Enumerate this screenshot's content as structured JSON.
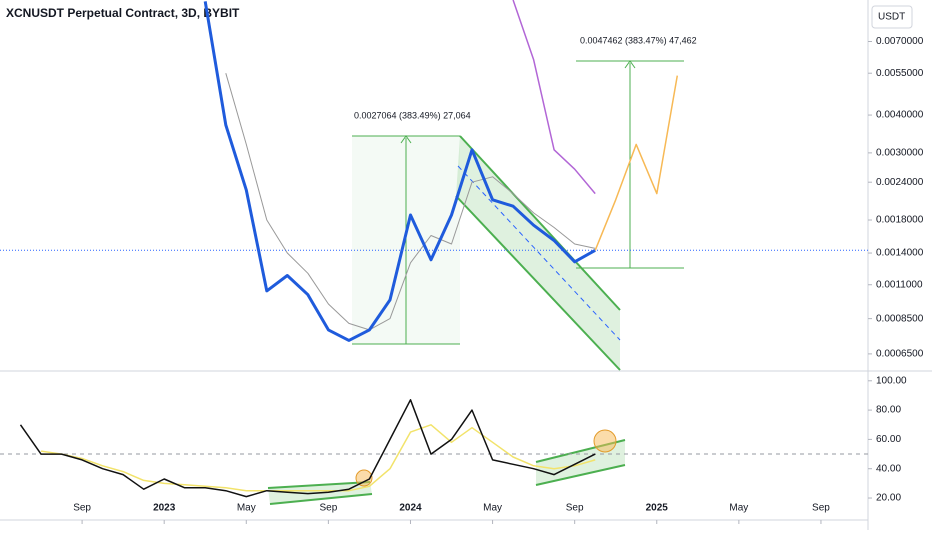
{
  "chart_data": [
    {
      "type": "line",
      "title": "XCNUSDT Perpetual Contract, 3D, BYBIT",
      "currency": "USDT",
      "annotations": [
        "0.0027064 (383.49%) 27,064",
        "0.0047462 (383.47%) 47,462"
      ],
      "log_scale": true,
      "x": [
        "2023-03",
        "2023-04",
        "2023-05",
        "2023-06",
        "2023-07",
        "2023-08",
        "2023-09",
        "2023-10",
        "2023-11",
        "2023-12",
        "2024-01",
        "2024-02",
        "2024-03",
        "2024-04",
        "2024-05",
        "2024-06",
        "2024-07",
        "2024-08",
        "2024-09",
        "2024-10",
        "2024-11",
        "2024-12",
        "2025-01",
        "2025-02"
      ],
      "series": [
        {
          "color": "#999999",
          "values": [
            null,
            0.0055,
            0.0032,
            0.0018,
            0.0014,
            0.0012,
            0.00095,
            0.00082,
            0.00078,
            0.00085,
            0.0013,
            0.0016,
            0.0015,
            0.0024,
            0.0025,
            0.0022,
            0.0019,
            0.0017,
            0.0015,
            0.00145,
            null,
            null,
            null,
            null
          ]
        },
        {
          "color": "#b266d6",
          "values": [
            null,
            null,
            null,
            null,
            null,
            null,
            null,
            null,
            null,
            null,
            null,
            null,
            null,
            null,
            null,
            0.0096,
            0.0061,
            0.00307,
            0.00265,
            0.0022,
            null,
            null,
            null,
            null
          ]
        },
        {
          "color": "#1f5bdc",
          "values": [
            0.0095,
            0.00371,
            0.00226,
            0.00105,
            0.00118,
            0.00102,
            0.00078,
            0.00072,
            0.00078,
            0.00098,
            0.00187,
            0.00133,
            0.00187,
            0.00307,
            0.0021,
            0.002,
            0.00173,
            0.00154,
            0.00131,
            0.00143,
            null,
            null,
            null,
            null
          ]
        },
        {
          "color": "#f7b955",
          "values": [
            null,
            null,
            null,
            null,
            null,
            null,
            null,
            null,
            null,
            null,
            null,
            null,
            null,
            null,
            null,
            null,
            null,
            null,
            null,
            0.00143,
            0.0021,
            0.0032,
            0.0022,
            0.0054
          ]
        }
      ],
      "xlim": [
        "2022-05",
        "2025-11"
      ],
      "xticks": [
        {
          "value": "2022-09",
          "label": "Sep"
        },
        {
          "value": "2023-01",
          "label": "2023"
        },
        {
          "value": "2023-05",
          "label": "May"
        },
        {
          "value": "2023-09",
          "label": "Sep"
        },
        {
          "value": "2024-01",
          "label": "2024"
        },
        {
          "value": "2024-05",
          "label": "May"
        },
        {
          "value": "2024-09",
          "label": "Sep"
        },
        {
          "value": "2025-01",
          "label": "2025"
        },
        {
          "value": "2025-05",
          "label": "May"
        },
        {
          "value": "2025-09",
          "label": "Sep"
        }
      ],
      "ylim": [
        0.000575,
        0.0096
      ],
      "yticks": [
        {
          "value": 0.007,
          "label": "0.0070000"
        },
        {
          "value": 0.0055,
          "label": "0.0055000"
        },
        {
          "value": 0.004,
          "label": "0.0040000"
        },
        {
          "value": 0.003,
          "label": "0.0030000"
        },
        {
          "value": 0.0024,
          "label": "0.0024000"
        },
        {
          "value": 0.0018,
          "label": "0.0018000"
        },
        {
          "value": 0.0014,
          "label": "0.0014000"
        },
        {
          "value": 0.0011,
          "label": "0.0011000"
        },
        {
          "value": 0.00085,
          "label": "0.0008500"
        },
        {
          "value": 0.00065,
          "label": "0.0006500"
        }
      ]
    },
    {
      "type": "line",
      "x": [
        "2022-06",
        "2022-07",
        "2022-08",
        "2022-09",
        "2022-10",
        "2022-11",
        "2022-12",
        "2023-01",
        "2023-02",
        "2023-03",
        "2023-04",
        "2023-05",
        "2023-06",
        "2023-07",
        "2023-08",
        "2023-09",
        "2023-10",
        "2023-11",
        "2023-12",
        "2024-01",
        "2024-02",
        "2024-03",
        "2024-04",
        "2024-05",
        "2024-06",
        "2024-07",
        "2024-08",
        "2024-09",
        "2024-10"
      ],
      "series": [
        {
          "color": "#f2e36b",
          "values": [
            null,
            52,
            50,
            47,
            42,
            38,
            32,
            30,
            29,
            28,
            27,
            25,
            25,
            25,
            25,
            25,
            25,
            28,
            40,
            65,
            70,
            58,
            68,
            58,
            48,
            42,
            40,
            42,
            46
          ]
        },
        {
          "color": "#111111",
          "values": [
            70,
            50,
            50,
            46,
            40,
            36,
            26,
            33,
            27,
            27,
            25,
            21,
            25,
            24,
            23,
            24,
            26,
            33,
            60,
            87,
            50,
            60,
            80,
            46,
            43,
            40,
            36,
            43,
            50
          ]
        }
      ],
      "hline": 50,
      "xlim": [
        "2022-05",
        "2025-11"
      ],
      "ylim": [
        5,
        106
      ],
      "yticks": [
        {
          "value": 100,
          "label": "100.00"
        },
        {
          "value": 80,
          "label": "80.00"
        },
        {
          "value": 60,
          "label": "60.00"
        },
        {
          "value": 40,
          "label": "40.00"
        },
        {
          "value": 20,
          "label": "20.00"
        }
      ]
    }
  ]
}
